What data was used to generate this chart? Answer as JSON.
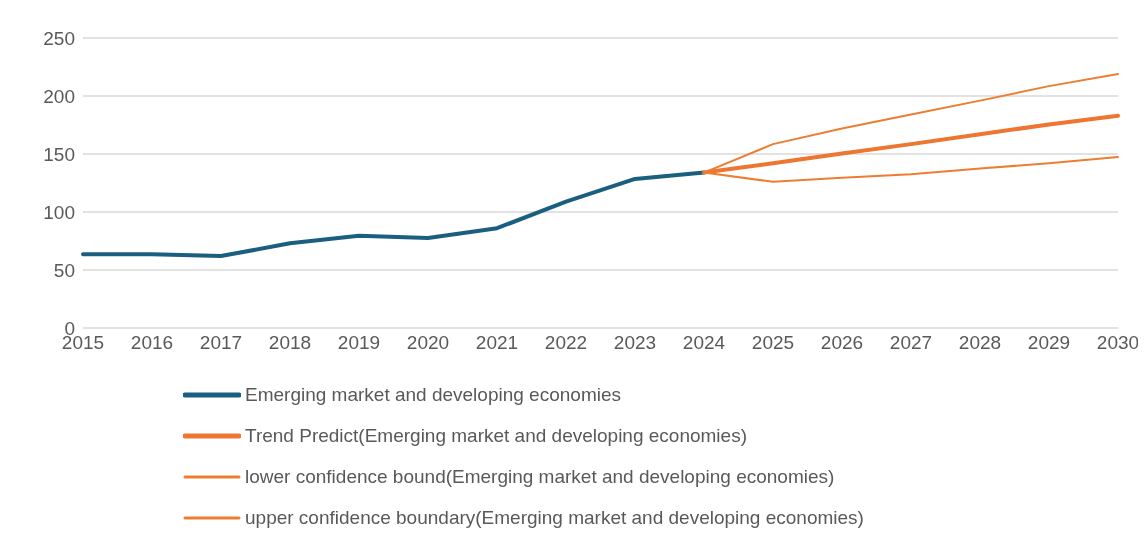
{
  "chart_data": {
    "type": "line",
    "categories": [
      "2015",
      "2016",
      "2017",
      "2018",
      "2019",
      "2020",
      "2021",
      "2022",
      "2023",
      "2024",
      "2025",
      "2026",
      "2027",
      "2028",
      "2029",
      "2030"
    ],
    "series": [
      {
        "name": "Emerging market and developing economies",
        "color": "#1a5e80",
        "values": [
          63.5,
          63.5,
          62,
          73,
          79.5,
          77.5,
          86,
          109,
          128.5,
          134,
          null,
          null,
          null,
          null,
          null,
          null
        ]
      },
      {
        "name": "Trend Predict(Emerging market and developing economies)",
        "color": "#ed7630",
        "values": [
          null,
          null,
          null,
          null,
          null,
          null,
          null,
          null,
          null,
          134,
          142,
          150.5,
          158.5,
          167,
          175.5,
          183
        ]
      },
      {
        "name": "lower confidence bound(Emerging market and developing economies)",
        "color": "#ed7d31",
        "values": [
          null,
          null,
          null,
          null,
          null,
          null,
          null,
          null,
          null,
          134,
          126,
          129.5,
          132.5,
          137.5,
          142,
          147.5
        ]
      },
      {
        "name": "upper confidence boundary(Emerging market and developing economies)",
        "color": "#ed7d31",
        "values": [
          null,
          null,
          null,
          null,
          null,
          null,
          null,
          null,
          null,
          134,
          158.5,
          172,
          184,
          196,
          208.5,
          219
        ]
      }
    ],
    "ylim": [
      0,
      250
    ],
    "yticks": [
      0,
      50,
      100,
      150,
      200,
      250
    ],
    "grid": "y",
    "legend": "bottom",
    "marker": "none",
    "line_style": "solid"
  }
}
